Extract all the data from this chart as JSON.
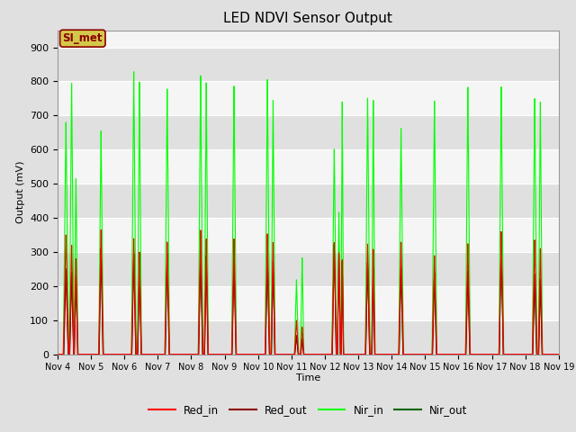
{
  "title": "LED NDVI Sensor Output",
  "ylabel": "Output (mV)",
  "xlabel": "Time",
  "xlim": [
    0,
    15
  ],
  "ylim": [
    0,
    950
  ],
  "yticks": [
    0,
    100,
    200,
    300,
    400,
    500,
    600,
    700,
    800,
    900
  ],
  "xtick_labels": [
    "Nov 4",
    "Nov 5",
    "Nov 6",
    "Nov 7",
    "Nov 8",
    "Nov 9",
    "Nov 10",
    "Nov 11",
    "Nov 12",
    "Nov 13",
    "Nov 14",
    "Nov 15",
    "Nov 16",
    "Nov 17",
    "Nov 18",
    "Nov 19"
  ],
  "background_color": "#e0e0e0",
  "plot_bg_color": "#f5f5f5",
  "band_color_light": "#f5f5f5",
  "band_color_dark": "#e0e0e0",
  "grid_color": "#ffffff",
  "annotation_text": "SI_met",
  "annotation_bg": "#d4c84a",
  "annotation_border": "#8b0000",
  "annotation_text_color": "#8b0000",
  "colors": {
    "Red_in": "#ff0000",
    "Red_out": "#8b0000",
    "Nir_in": "#00ff00",
    "Nir_out": "#006400"
  },
  "linewidths": {
    "Red_in": 0.8,
    "Red_out": 0.8,
    "Nir_in": 0.8,
    "Nir_out": 0.8
  },
  "spike_data": [
    [
      0.25,
      350,
      250,
      680,
      250,
      0.08
    ],
    [
      0.42,
      320,
      240,
      795,
      240,
      0.07
    ],
    [
      0.55,
      280,
      230,
      515,
      230,
      0.06
    ],
    [
      1.3,
      365,
      310,
      655,
      310,
      0.07
    ],
    [
      2.28,
      340,
      295,
      830,
      295,
      0.07
    ],
    [
      2.45,
      300,
      280,
      800,
      280,
      0.06
    ],
    [
      3.28,
      330,
      295,
      780,
      295,
      0.07
    ],
    [
      4.28,
      365,
      300,
      820,
      300,
      0.07
    ],
    [
      4.45,
      340,
      290,
      800,
      290,
      0.06
    ],
    [
      5.28,
      340,
      280,
      790,
      280,
      0.07
    ],
    [
      6.28,
      355,
      290,
      810,
      290,
      0.07
    ],
    [
      6.45,
      330,
      275,
      750,
      275,
      0.06
    ],
    [
      7.15,
      100,
      55,
      220,
      55,
      0.06
    ],
    [
      7.32,
      80,
      45,
      285,
      45,
      0.05
    ],
    [
      8.28,
      330,
      325,
      605,
      325,
      0.07
    ],
    [
      8.42,
      300,
      295,
      420,
      295,
      0.05
    ],
    [
      8.52,
      280,
      275,
      748,
      275,
      0.04
    ],
    [
      9.28,
      325,
      270,
      755,
      270,
      0.07
    ],
    [
      9.45,
      310,
      255,
      750,
      255,
      0.05
    ],
    [
      10.28,
      330,
      255,
      665,
      255,
      0.07
    ],
    [
      11.28,
      290,
      240,
      745,
      240,
      0.07
    ],
    [
      12.28,
      325,
      245,
      785,
      245,
      0.07
    ],
    [
      13.28,
      360,
      330,
      785,
      330,
      0.07
    ],
    [
      14.28,
      335,
      235,
      750,
      235,
      0.07
    ],
    [
      14.45,
      310,
      220,
      740,
      220,
      0.06
    ]
  ]
}
